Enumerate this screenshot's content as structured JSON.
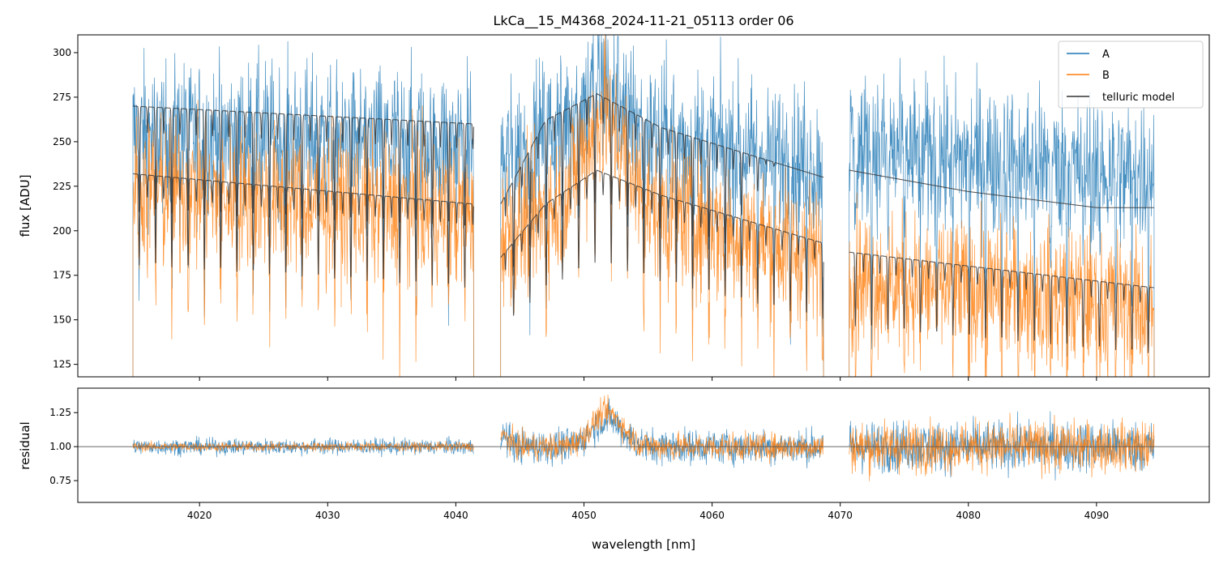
{
  "chart_data": [
    {
      "panel": "top",
      "type": "line",
      "title": "LkCa__15_M4368_2024-11-21_05113  order 06",
      "xlabel": "",
      "ylabel": "flux [ADU]",
      "xlim": [
        4010.5,
        4098.8
      ],
      "ylim": [
        118,
        310
      ],
      "x_ticks": [
        4020,
        4030,
        4040,
        4050,
        4060,
        4070,
        4080,
        4090
      ],
      "y_ticks": [
        125,
        150,
        175,
        200,
        225,
        250,
        275,
        300
      ],
      "y_tick_labels": [
        "125",
        "150",
        "175",
        "200",
        "225",
        "250",
        "275",
        "300"
      ],
      "legend": {
        "position": "top-right",
        "entries": [
          "A",
          "B",
          "telluric model"
        ]
      },
      "segments": [
        [
          4014.8,
          4041.4
        ],
        [
          4043.5,
          4068.7
        ],
        [
          4070.7,
          4094.5
        ]
      ],
      "series": [
        {
          "name": "A",
          "color": "#1f77b4",
          "kind": "noisy-spectrum",
          "continuum": [
            [
              4014.8,
              255
            ],
            [
              4041.4,
              250
            ],
            [
              4043.5,
              238
            ],
            [
              4048,
              260
            ],
            [
              4051.5,
              285
            ],
            [
              4055,
              255
            ],
            [
              4068.7,
              238
            ],
            [
              4070.7,
              248
            ],
            [
              4094.5,
              233
            ]
          ],
          "noise": 30
        },
        {
          "name": "B",
          "color": "#ff7f0e",
          "kind": "noisy-spectrum",
          "continuum": [
            [
              4014.8,
              225
            ],
            [
              4041.4,
              210
            ],
            [
              4043.5,
              200
            ],
            [
              4048,
              215
            ],
            [
              4051.5,
              270
            ],
            [
              4055,
              215
            ],
            [
              4068.7,
              185
            ],
            [
              4070.7,
              175
            ],
            [
              4094.5,
              158
            ]
          ],
          "noise": 28
        },
        {
          "name": "telluric model A",
          "legend_name": "telluric model",
          "color": "#333333",
          "kind": "telluric",
          "continuum": [
            [
              4014.8,
              270
            ],
            [
              4041.4,
              260
            ],
            [
              4043.5,
              215
            ],
            [
              4047,
              262
            ],
            [
              4051,
              277
            ],
            [
              4056,
              258
            ],
            [
              4068.7,
              230
            ],
            [
              4070.7,
              234
            ],
            [
              4080,
              222
            ],
            [
              4090,
              213
            ],
            [
              4094.5,
              213
            ]
          ],
          "line_spacing": 1.27,
          "line_depth": 0.22,
          "no_lines_after": 4061
        },
        {
          "name": "telluric model B",
          "color": "#333333",
          "kind": "telluric",
          "continuum": [
            [
              4014.8,
              232
            ],
            [
              4041.4,
              215
            ],
            [
              4043.5,
              185
            ],
            [
              4047,
              215
            ],
            [
              4051,
              234
            ],
            [
              4056,
              220
            ],
            [
              4068.7,
              193
            ],
            [
              4070.7,
              188
            ],
            [
              4094.5,
              168
            ]
          ],
          "line_spacing": 1.27,
          "line_depth": 0.22
        }
      ]
    },
    {
      "panel": "bottom",
      "type": "line",
      "xlabel": "wavelength [nm]",
      "ylabel": "residual",
      "xlim": [
        4010.5,
        4098.8
      ],
      "ylim": [
        0.59,
        1.43
      ],
      "x_ticks": [
        4020,
        4030,
        4040,
        4050,
        4060,
        4070,
        4080,
        4090
      ],
      "x_tick_labels": [
        "4020",
        "4030",
        "4040",
        "4050",
        "4060",
        "4070",
        "4080",
        "4090"
      ],
      "y_ticks": [
        0.75,
        1.0,
        1.25
      ],
      "y_tick_labels": [
        "0.75",
        "1.00",
        "1.25"
      ],
      "reference_line": 1.0,
      "series": [
        {
          "name": "A",
          "color": "#1f77b4",
          "kind": "residual",
          "segment_noise": [
            0.07,
            0.15,
            0.22
          ],
          "bump": {
            "center": 4051.8,
            "height": 0.2,
            "width": 1.2
          }
        },
        {
          "name": "B",
          "color": "#ff7f0e",
          "kind": "residual",
          "segment_noise": [
            0.04,
            0.12,
            0.22
          ],
          "bump": {
            "center": 4051.8,
            "height": 0.25,
            "width": 1.2
          }
        }
      ]
    }
  ]
}
